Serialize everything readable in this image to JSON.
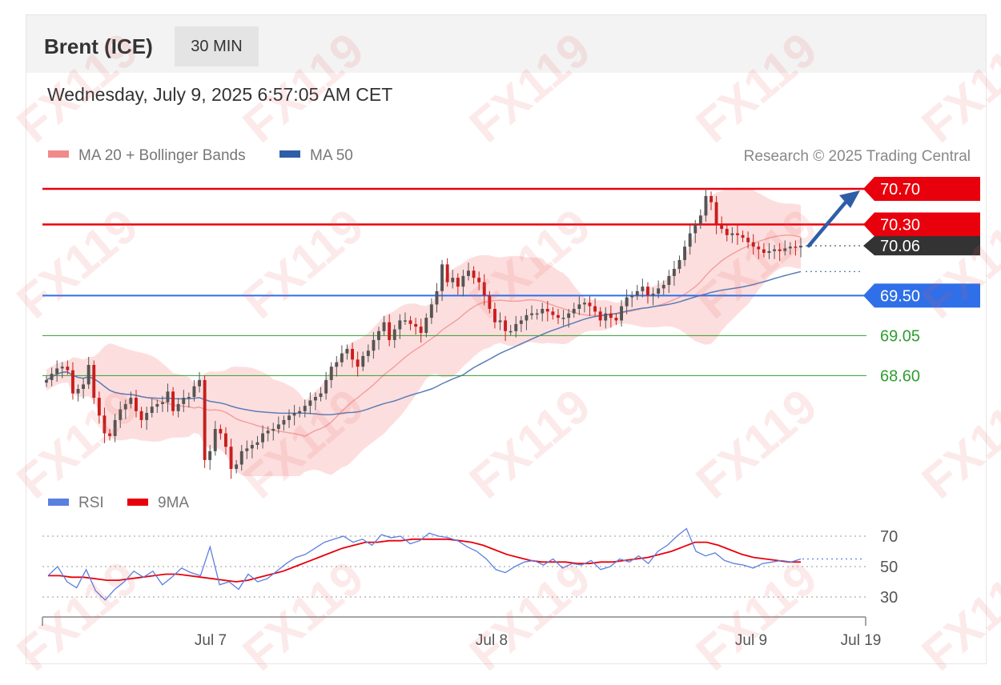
{
  "header": {
    "symbol": "Brent (ICE)",
    "timeframe": "30 MIN",
    "datetime": "Wednesday, July 9, 2025 6:57:05 AM CET"
  },
  "legend": {
    "ma20": "MA 20 + Bollinger Bands",
    "ma50": "MA 50",
    "copyright": "Research © 2025 Trading Central"
  },
  "watermark": "FX119",
  "colors": {
    "resistance": "#e8000c",
    "support_main": "#2f6fe8",
    "support_minor": "#2e9e2e",
    "up_candle": "#555555",
    "down_candle": "#c81e1e",
    "bands": "#fcd3d3",
    "ma20": "#f4a0a0",
    "ma50": "#5a7db6",
    "rsi": "#5b7fe0",
    "rsi_ma": "#e8000c",
    "arrow": "#2f5ea8",
    "last_price": "#333333"
  },
  "chart_data": [
    {
      "type": "line",
      "subtype": "candlestick",
      "x_ticks": [
        "Jul 7",
        "Jul 8",
        "Jul 9",
        "Jul 19"
      ],
      "ylim": [
        67.6,
        70.95
      ],
      "last_price": 70.06,
      "levels": [
        {
          "label": "70.70",
          "value": 70.7,
          "kind": "resistance"
        },
        {
          "label": "70.30",
          "value": 70.3,
          "kind": "resistance"
        },
        {
          "label": "69.50",
          "value": 69.5,
          "kind": "support"
        },
        {
          "label": "69.05",
          "value": 69.05,
          "kind": "support-minor"
        },
        {
          "label": "68.60",
          "value": 68.6,
          "kind": "support-minor"
        }
      ],
      "projection": {
        "from": 70.06,
        "to": 70.7
      },
      "close": [
        68.55,
        68.62,
        68.68,
        68.7,
        68.66,
        68.4,
        68.45,
        68.5,
        68.72,
        68.35,
        68.15,
        67.95,
        67.92,
        68.1,
        68.22,
        68.28,
        68.35,
        68.2,
        68.1,
        68.18,
        68.25,
        68.28,
        68.3,
        68.42,
        68.2,
        68.28,
        68.35,
        68.36,
        68.48,
        68.55,
        67.65,
        67.75,
        68.0,
        67.95,
        67.8,
        67.55,
        67.6,
        67.75,
        67.78,
        67.82,
        67.85,
        67.95,
        67.98,
        68.0,
        68.05,
        68.1,
        68.15,
        68.18,
        68.2,
        68.26,
        68.32,
        68.36,
        68.4,
        68.55,
        68.7,
        68.75,
        68.85,
        68.9,
        68.78,
        68.7,
        68.82,
        68.88,
        69.0,
        69.1,
        69.2,
        69.0,
        69.12,
        69.22,
        69.22,
        69.18,
        69.15,
        69.08,
        69.25,
        69.4,
        69.55,
        69.85,
        69.65,
        69.7,
        69.6,
        69.72,
        69.78,
        69.7,
        69.65,
        69.5,
        69.35,
        69.2,
        69.22,
        69.1,
        69.1,
        69.18,
        69.22,
        69.28,
        69.3,
        69.3,
        69.35,
        69.32,
        69.28,
        69.25,
        69.25,
        69.3,
        69.35,
        69.4,
        69.42,
        69.38,
        69.32,
        69.22,
        69.3,
        69.25,
        69.22,
        69.38,
        69.48,
        69.5,
        69.55,
        69.6,
        69.5,
        69.52,
        69.58,
        69.62,
        69.72,
        69.8,
        69.9,
        70.05,
        70.2,
        70.3,
        70.4,
        70.62,
        70.55,
        70.3,
        70.25,
        70.18,
        70.2,
        70.18,
        70.15,
        70.1,
        70.05,
        70.02,
        69.98,
        70.0,
        70.02,
        70.0,
        70.03,
        70.05,
        70.04,
        70.06
      ],
      "rsi": {
        "ylim": [
          20,
          80
        ],
        "levels": [
          70,
          50,
          30
        ],
        "x_ticks": [
          "Jul 7",
          "Jul 8",
          "Jul 9",
          "Jul 19"
        ],
        "series": [
          {
            "name": "RSI",
            "values": [
              44,
              50,
              40,
              36,
              48,
              34,
              28,
              35,
              40,
              47,
              43,
              47,
              38,
              43,
              49,
              46,
              44,
              63,
              38,
              40,
              35,
              45,
              40,
              42,
              47,
              52,
              56,
              58,
              62,
              66,
              68,
              70,
              66,
              68,
              64,
              71,
              69,
              70,
              65,
              67,
              72,
              70,
              69,
              67,
              63,
              60,
              55,
              48,
              46,
              50,
              53,
              54,
              51,
              55,
              49,
              52,
              51,
              54,
              48,
              50,
              55,
              53,
              57,
              52,
              60,
              64,
              70,
              75,
              60,
              57,
              59,
              54,
              52,
              51,
              49,
              52,
              53,
              54,
              53,
              55
            ]
          },
          {
            "name": "9MA",
            "values": [
              44,
              44,
              43,
              43,
              42,
              41,
              41,
              42,
              43,
              44,
              45,
              45,
              44,
              43,
              42,
              41,
              40,
              41,
              43,
              45,
              47,
              50,
              53,
              56,
              59,
              62,
              64,
              66,
              66,
              67,
              67,
              68,
              68,
              68,
              68,
              67,
              66,
              64,
              61,
              58,
              56,
              54,
              53,
              53,
              53,
              52,
              52,
              53,
              53,
              54,
              55,
              56,
              58,
              60,
              63,
              66,
              66,
              64,
              61,
              58,
              56,
              55,
              54,
              53,
              53
            ]
          }
        ]
      }
    }
  ]
}
